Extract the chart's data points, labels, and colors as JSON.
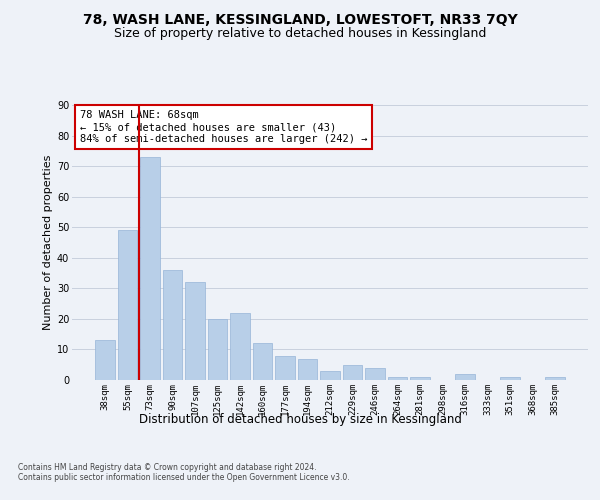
{
  "title": "78, WASH LANE, KESSINGLAND, LOWESTOFT, NR33 7QY",
  "subtitle": "Size of property relative to detached houses in Kessingland",
  "xlabel": "Distribution of detached houses by size in Kessingland",
  "ylabel": "Number of detached properties",
  "categories": [
    "38sqm",
    "55sqm",
    "73sqm",
    "90sqm",
    "107sqm",
    "125sqm",
    "142sqm",
    "160sqm",
    "177sqm",
    "194sqm",
    "212sqm",
    "229sqm",
    "246sqm",
    "264sqm",
    "281sqm",
    "298sqm",
    "316sqm",
    "333sqm",
    "351sqm",
    "368sqm",
    "385sqm"
  ],
  "values": [
    13,
    49,
    73,
    36,
    32,
    20,
    22,
    12,
    8,
    7,
    3,
    5,
    4,
    1,
    1,
    0,
    2,
    0,
    1,
    0,
    1
  ],
  "bar_color": "#b8cfe8",
  "bar_edge_color": "#96b4d8",
  "vline_position": 1.5,
  "vline_color": "#cc0000",
  "annotation_text": "78 WASH LANE: 68sqm\n← 15% of detached houses are smaller (43)\n84% of semi-detached houses are larger (242) →",
  "annotation_box_facecolor": "white",
  "annotation_box_edgecolor": "#cc0000",
  "ylim": [
    0,
    90
  ],
  "yticks": [
    0,
    10,
    20,
    30,
    40,
    50,
    60,
    70,
    80,
    90
  ],
  "bg_color": "#eef2f8",
  "grid_color": "#c8d0de",
  "footer": "Contains HM Land Registry data © Crown copyright and database right 2024.\nContains public sector information licensed under the Open Government Licence v3.0.",
  "title_fontsize": 10,
  "subtitle_fontsize": 9,
  "xlabel_fontsize": 8.5,
  "ylabel_fontsize": 8,
  "tick_fontsize": 6.5,
  "annot_fontsize": 7.5,
  "footer_fontsize": 5.5
}
